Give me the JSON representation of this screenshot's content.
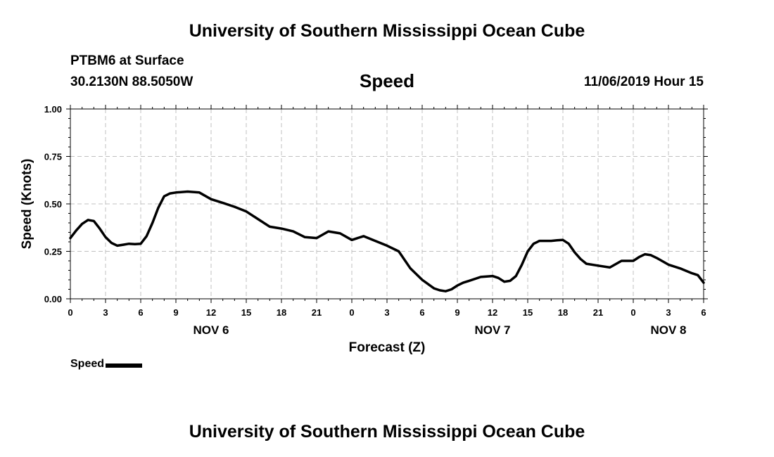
{
  "header": {
    "title": "University of Southern Mississippi Ocean Cube",
    "station": "PTBM6 at Surface",
    "coordinates": "30.2130N 88.5050W",
    "datetime": "11/06/2019 Hour 15"
  },
  "footer": {
    "title": "University of Southern Mississippi Ocean Cube"
  },
  "chart_data": {
    "type": "line",
    "title": "Speed",
    "xlabel": "Forecast (Z)",
    "ylabel": "Speed (Knots)",
    "ylim": [
      0,
      1
    ],
    "xlim_hours": [
      0,
      54
    ],
    "grid": true,
    "yticks": [
      "0.00",
      "0.25",
      "0.50",
      "0.75",
      "1.00"
    ],
    "ytick_values": [
      0,
      0.25,
      0.5,
      0.75,
      1.0
    ],
    "xticks": [
      "0",
      "3",
      "6",
      "9",
      "12",
      "15",
      "18",
      "21",
      "0",
      "3",
      "6",
      "9",
      "12",
      "15",
      "18",
      "21",
      "0",
      "3",
      "6"
    ],
    "date_labels": [
      {
        "label": "NOV 6",
        "hour": 12
      },
      {
        "label": "NOV 7",
        "hour": 36
      },
      {
        "label": "NOV 8",
        "hour": 51
      }
    ],
    "legend": {
      "label": "Speed",
      "placement": "bottom-left"
    },
    "series": [
      {
        "name": "Speed",
        "color": "#000000",
        "x": [
          0,
          0.5,
          1,
          1.5,
          2,
          2.5,
          3,
          3.5,
          4,
          4.5,
          5,
          5.5,
          6,
          6.5,
          7,
          7.5,
          8,
          8.5,
          9,
          10,
          11,
          12,
          13,
          14,
          15,
          16,
          17,
          18,
          19,
          20,
          21,
          22,
          23,
          24,
          25,
          26,
          27,
          28,
          29,
          30,
          31,
          31.5,
          32,
          32.5,
          33,
          33.5,
          34,
          35,
          36,
          36.5,
          37,
          37.5,
          38,
          38.5,
          39,
          39.5,
          40,
          41,
          41.5,
          42,
          42.5,
          43,
          43.5,
          44,
          45,
          46,
          47,
          48,
          48.5,
          49,
          49.5,
          50,
          51,
          52,
          53,
          53.5,
          54
        ],
        "values": [
          0.32,
          0.36,
          0.395,
          0.415,
          0.41,
          0.37,
          0.325,
          0.295,
          0.28,
          0.285,
          0.29,
          0.288,
          0.29,
          0.33,
          0.4,
          0.48,
          0.54,
          0.555,
          0.56,
          0.565,
          0.56,
          0.525,
          0.505,
          0.485,
          0.46,
          0.42,
          0.38,
          0.37,
          0.355,
          0.325,
          0.32,
          0.355,
          0.345,
          0.31,
          0.33,
          0.305,
          0.28,
          0.25,
          0.16,
          0.1,
          0.055,
          0.045,
          0.04,
          0.05,
          0.07,
          0.085,
          0.095,
          0.115,
          0.12,
          0.11,
          0.09,
          0.095,
          0.12,
          0.18,
          0.25,
          0.29,
          0.305,
          0.305,
          0.308,
          0.31,
          0.29,
          0.245,
          0.21,
          0.185,
          0.175,
          0.165,
          0.2,
          0.2,
          0.22,
          0.235,
          0.23,
          0.215,
          0.18,
          0.16,
          0.135,
          0.125,
          0.085
        ]
      }
    ]
  }
}
